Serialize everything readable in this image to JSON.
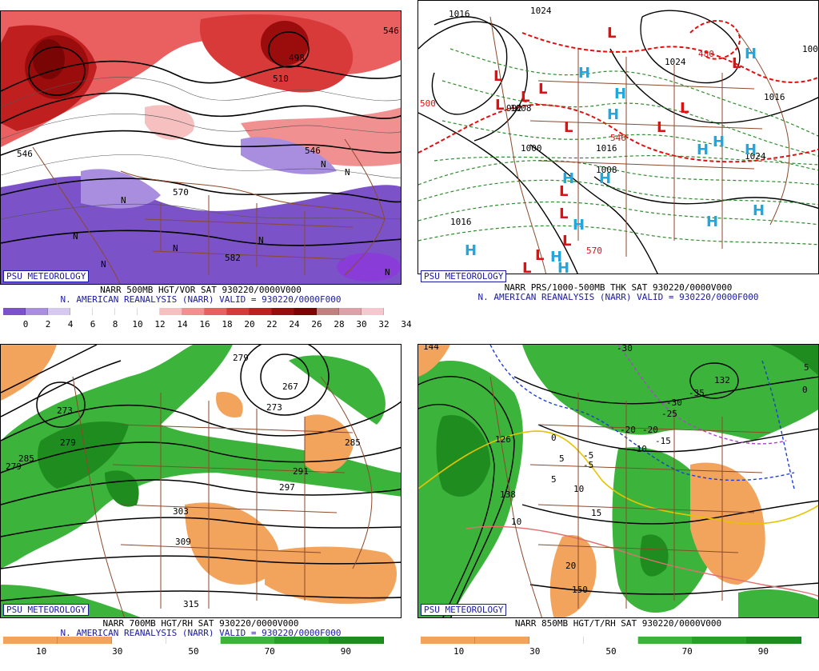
{
  "psu_label": "PSU METEOROLOGY",
  "panels": [
    {
      "id": "vorticity",
      "title": "NARR 500MB HGT/VOR SAT 930220/0000V000",
      "subtitle": "N. AMERICAN REANALYSIS (NARR) VALID = 930220/0000F000",
      "colorbar": {
        "colors": [
          "#7b52c8",
          "#a98ee0",
          "#d6c9f0",
          "#ffffff",
          "#ffffff",
          "#ffffff",
          "#ffffff",
          "#f7c0c0",
          "#f19090",
          "#ea6060",
          "#d83a3a",
          "#c01f1f",
          "#9b0d0d",
          "#7a0505",
          "#c08080",
          "#dca0a8",
          "#f3c9cf"
        ],
        "labels": [
          "0",
          "2",
          "4",
          "6",
          "8",
          "10",
          "12",
          "14",
          "16",
          "18",
          "20",
          "22",
          "24",
          "26",
          "28",
          "30",
          "32",
          "34"
        ]
      },
      "contour_labels": [
        "546",
        "498",
        "510",
        "546",
        "546",
        "570",
        "582"
      ],
      "markers": [
        "N",
        "N",
        "N",
        "N",
        "N",
        "N",
        "N",
        "N"
      ]
    },
    {
      "id": "pressure",
      "title": "NARR PRS/1000-500MB THK SAT 930220/0000V000",
      "subtitle": "N. AMERICAN REANALYSIS (NARR) VALID = 930220/0000F000",
      "contour_labels": [
        "1016",
        "1024",
        "1008",
        "992",
        "1000",
        "1016",
        "1024",
        "1008",
        "1016",
        "1024",
        "1016",
        "1008",
        "546",
        "570",
        "480",
        "500"
      ],
      "markers_h": [
        "H",
        "H",
        "H",
        "H",
        "H",
        "H",
        "H",
        "H",
        "H",
        "H",
        "H",
        "H",
        "H",
        "H",
        "H"
      ],
      "markers_l": [
        "L",
        "L",
        "L",
        "L",
        "L",
        "L",
        "L",
        "L",
        "L",
        "L",
        "L",
        "L",
        "L",
        "L"
      ]
    },
    {
      "id": "rh700",
      "title": "NARR 700MB HGT/RH SAT 930220/0000V000",
      "subtitle": "N. AMERICAN REANALYSIS (NARR) VALID = 930220/0000F000",
      "colorbar": {
        "colors": [
          "#f2a35c",
          "#f2a35c",
          "#ffffff",
          "#ffffff",
          "#3cb43c",
          "#28a028",
          "#1e8c1e"
        ],
        "labels": [
          "10",
          "30",
          "50",
          "70",
          "90"
        ]
      },
      "contour_labels": [
        "279",
        "273",
        "267",
        "273",
        "279",
        "285",
        "291",
        "297",
        "303",
        "309",
        "315",
        "279",
        "285"
      ]
    },
    {
      "id": "rh850",
      "title": "NARR 850MB HGT/T/RH SAT 930220/0000V000",
      "colorbar": {
        "colors": [
          "#f2a35c",
          "#f2a35c",
          "#ffffff",
          "#ffffff",
          "#3cb43c",
          "#28a028",
          "#1e8c1e"
        ],
        "labels": [
          "10",
          "30",
          "50",
          "70",
          "90"
        ]
      },
      "contour_labels": [
        "144",
        "126",
        "138",
        "132",
        "150",
        "-30",
        "-35",
        "-30",
        "-25",
        "-20",
        "-15",
        "-10",
        "-5",
        "-5",
        "0",
        "5",
        "5",
        "10",
        "10",
        "15",
        "20",
        "0",
        "-20",
        "5"
      ]
    }
  ]
}
